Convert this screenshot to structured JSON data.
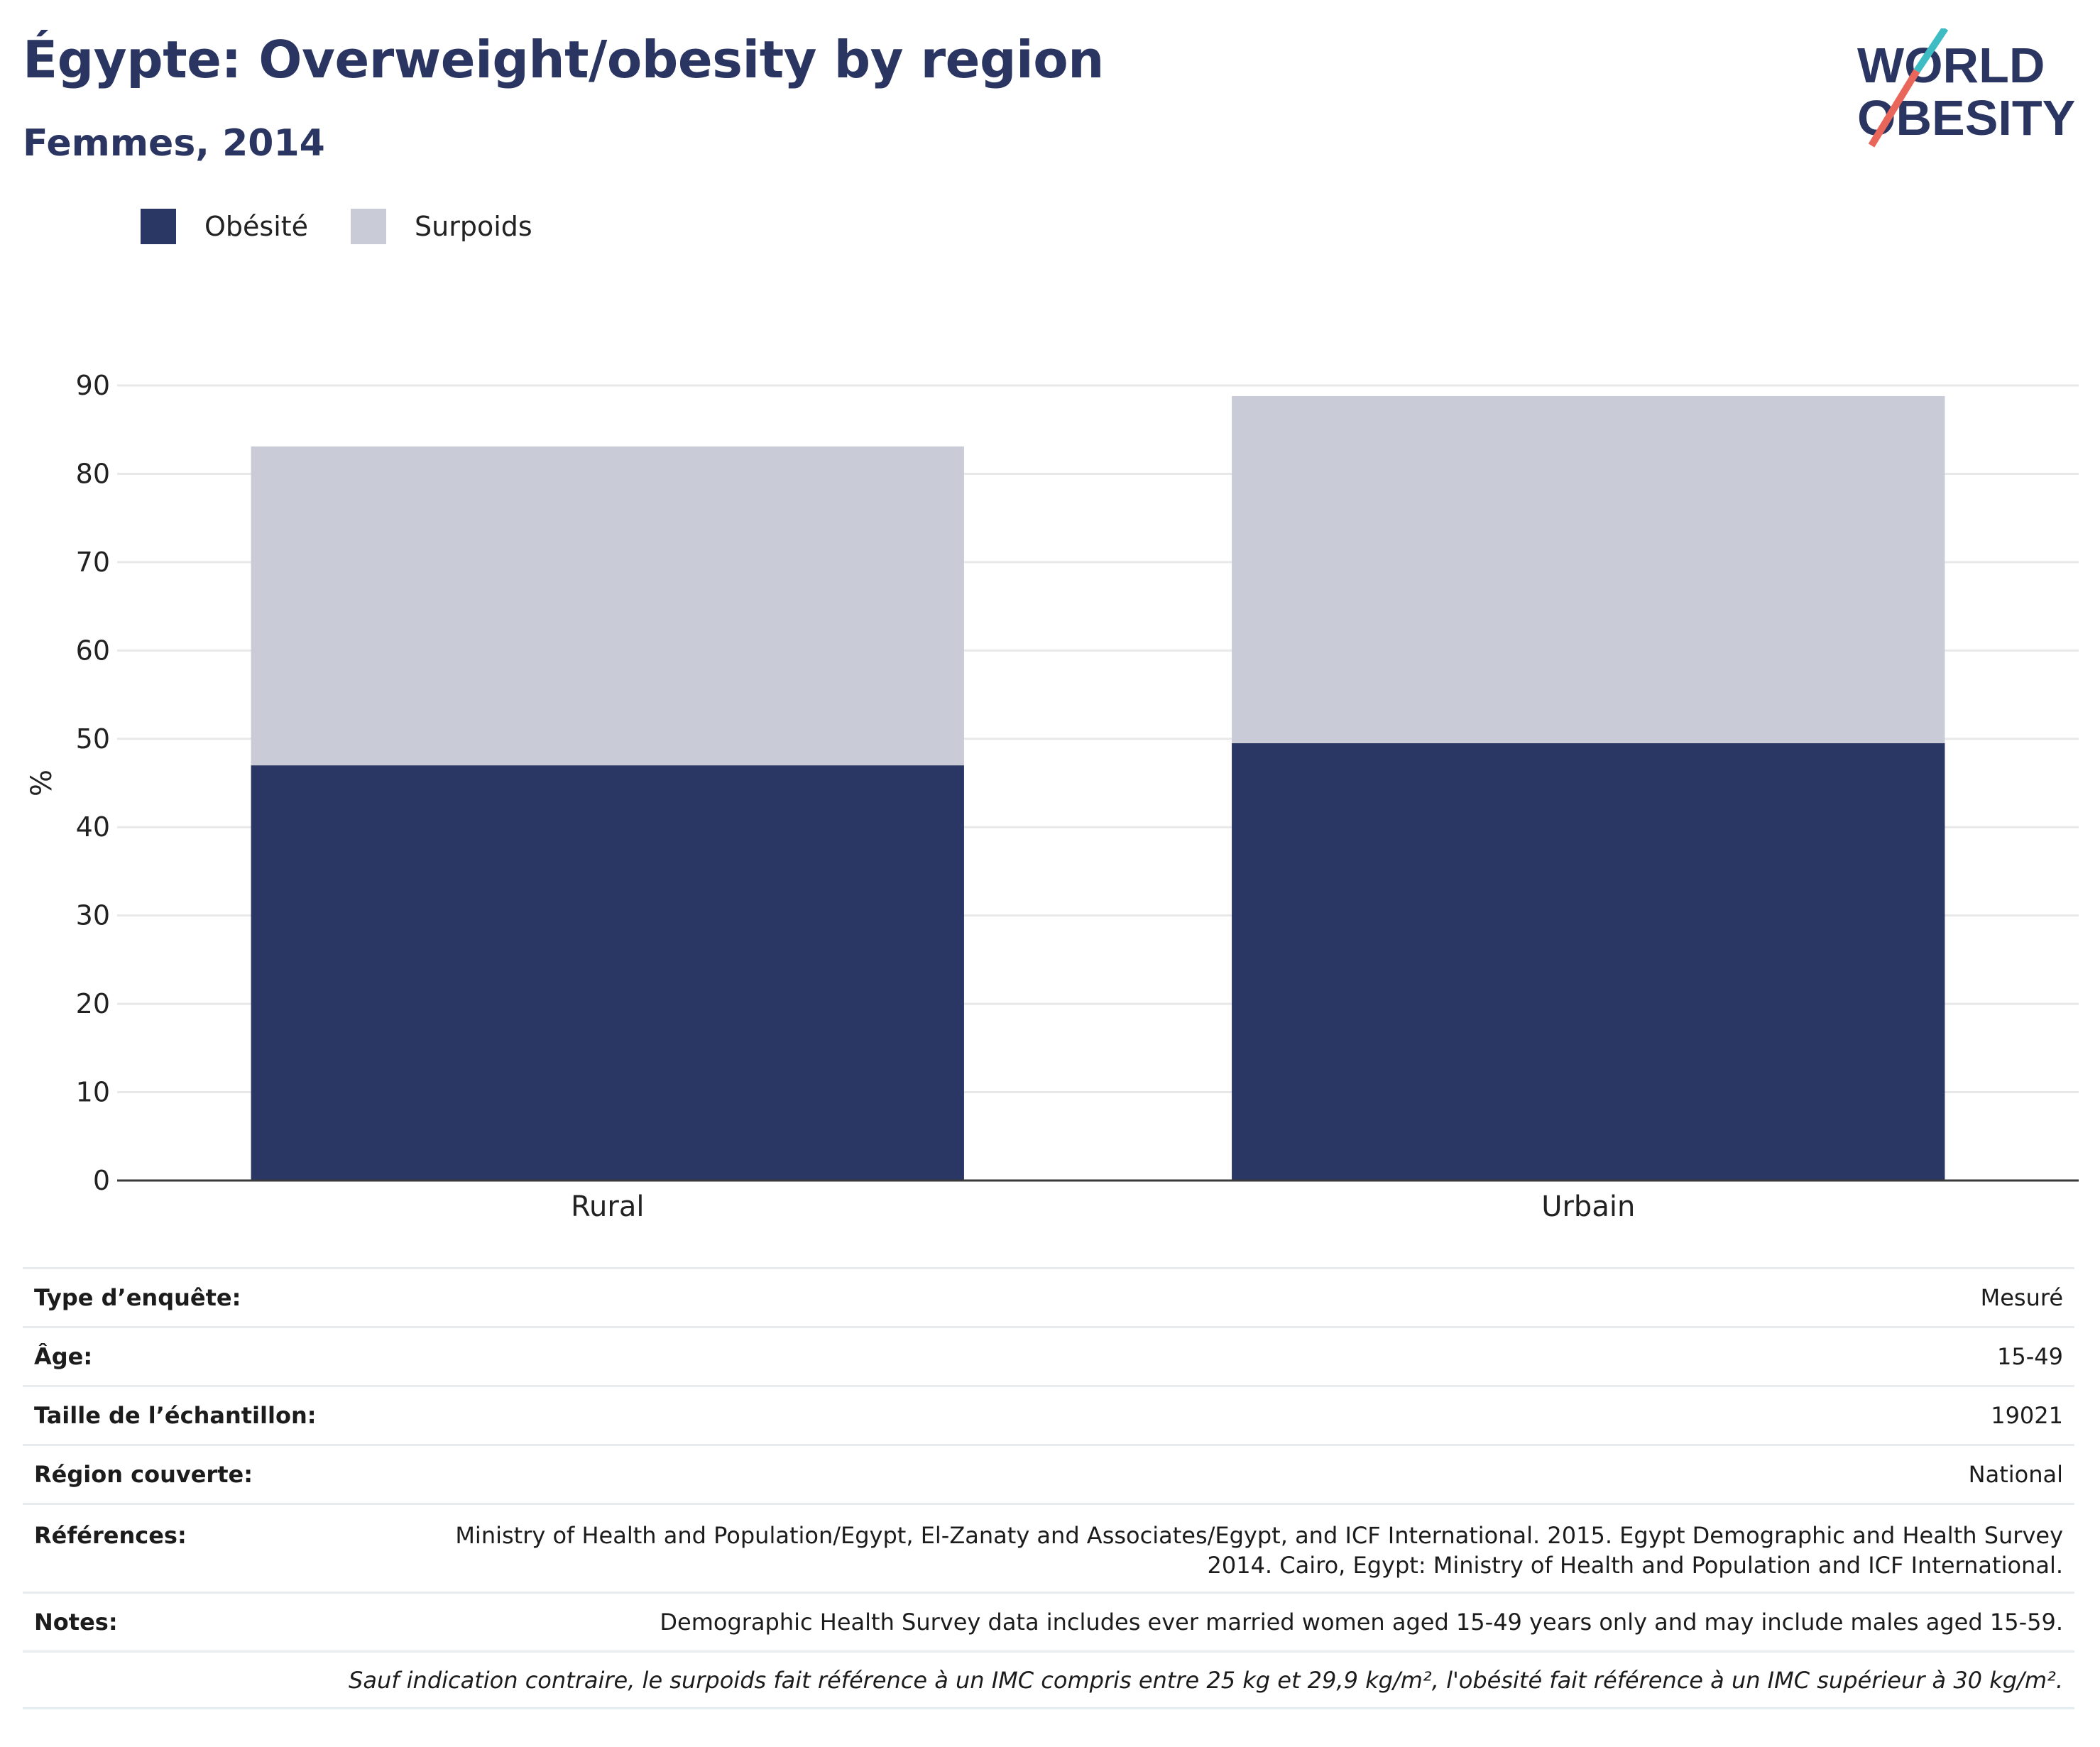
{
  "title": "Égypte: Overweight/obesity by region",
  "subtitle": "Femmes, 2014",
  "logo": {
    "line1": "WORLD",
    "line2": "OBESITY"
  },
  "colors": {
    "obesity": "#2a3663",
    "overweight": "#c9cbd7",
    "title": "#2a3561",
    "grid": "#e8e8e8",
    "axis": "#3a3a3a"
  },
  "legend": [
    {
      "label": "Obésité",
      "color": "#2a3663"
    },
    {
      "label": "Surpoids",
      "color": "#c9cbd7"
    }
  ],
  "chart_data": {
    "type": "bar",
    "stacked": true,
    "categories": [
      "Rural",
      "Urbain"
    ],
    "series": [
      {
        "name": "Obésité",
        "values": [
          47.0,
          49.5
        ]
      },
      {
        "name": "Surpoids",
        "values": [
          36.1,
          39.3
        ]
      }
    ],
    "xlabel": "",
    "ylabel": "%",
    "ylim": [
      0,
      90
    ],
    "yticks": [
      0,
      10,
      20,
      30,
      40,
      50,
      60,
      70,
      80,
      90
    ],
    "grid": true,
    "legend_position": "top-left"
  },
  "meta": [
    {
      "key": "Type d’enquête:",
      "value": "Mesuré"
    },
    {
      "key": "Âge:",
      "value": "15-49"
    },
    {
      "key": "Taille de l’échantillon:",
      "value": "19021"
    },
    {
      "key": "Région couverte:",
      "value": "National"
    },
    {
      "key": "Références:",
      "value": "Ministry of Health and Population/Egypt, El-Zanaty and Associates/Egypt, and ICF International. 2015. Egypt Demographic and Health Survey 2014. Cairo, Egypt: Ministry of Health and Population and ICF International."
    },
    {
      "key": "Notes:",
      "value": "Demographic Health Survey data includes ever married women aged 15-49 years only and may include males aged 15-59."
    }
  ],
  "footnote": "Sauf indication contraire, le surpoids fait référence à un IMC compris entre 25 kg et 29,9 kg/m², l'obésité fait référence à un IMC supérieur à 30 kg/m²."
}
